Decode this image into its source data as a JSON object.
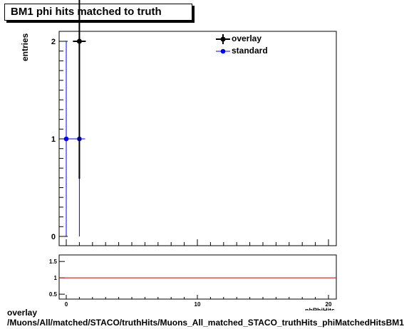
{
  "chart_data": {
    "type": "scatter",
    "title": "BM1 phi hits matched to truth",
    "ylabel": "entries",
    "xlabel": "nbPhiHits",
    "xlim": [
      0,
      20.5
    ],
    "ylim": [
      0,
      2.1
    ],
    "x_ticks": [
      0,
      10,
      20
    ],
    "y_ticks": [
      0,
      1,
      2
    ],
    "legend_position": "top-right",
    "series": [
      {
        "name": "overlay",
        "color": "#000000",
        "points": [
          {
            "x": 1,
            "y": 2,
            "err": 1.41
          }
        ]
      },
      {
        "name": "standard",
        "color": "#0000ff",
        "points": [
          {
            "x": 0,
            "y": 1,
            "err": 1
          },
          {
            "x": 1,
            "y": 1,
            "err": 1
          }
        ]
      }
    ],
    "ratio_panel": {
      "y_ticks": [
        0.5,
        1,
        1.5
      ],
      "ylim": [
        0.35,
        1.7
      ],
      "reference_line": 1,
      "reference_color": "#cc0000"
    }
  },
  "footer": {
    "line1": "overlay",
    "line2": "/Muons/All/matched/STACO/truthHits/Muons_All_matched_STACO_truthHits_phiMatchedHitsBM1"
  }
}
